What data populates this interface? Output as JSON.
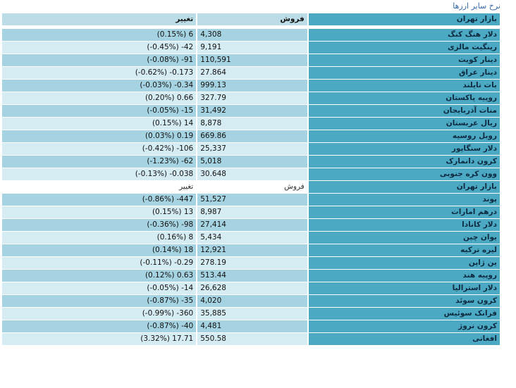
{
  "title": "نرخ سایر ارزها",
  "headers": {
    "market": "بازار تهران",
    "sell": "فروش",
    "change": "تغییر"
  },
  "rows": [
    {
      "name": "دلار هنگ کنگ",
      "sell": "4,308",
      "change": "6",
      "pct": "(0.15%)"
    },
    {
      "name": "رینگیت مالزی",
      "sell": "9,191",
      "change": "-42",
      "pct": "(-0.45%)"
    },
    {
      "name": "دینار کویت",
      "sell": "110,591",
      "change": "-91",
      "pct": "(-0.08%)"
    },
    {
      "name": "دینار عراق",
      "sell": "27.864",
      "change": "-0.173",
      "pct": "(-0.62%)"
    },
    {
      "name": "بات تایلند",
      "sell": "999.13",
      "change": "-0.34",
      "pct": "(-0.03%)"
    },
    {
      "name": "روپیه پاکستان",
      "sell": "327.79",
      "change": "0.66",
      "pct": "(0.20%)"
    },
    {
      "name": "منات آذربایجان",
      "sell": "31,492",
      "change": "-15",
      "pct": "(-0.05%)"
    },
    {
      "name": "ریال عربستان",
      "sell": "8,878",
      "change": "14",
      "pct": "(0.15%)"
    },
    {
      "name": "روبل روسیه",
      "sell": "669.86",
      "change": "0.19",
      "pct": "(0.03%)"
    },
    {
      "name": "دلار سنگاپور",
      "sell": "25,337",
      "change": "-106",
      "pct": "(-0.42%)"
    },
    {
      "name": "کرون دانمارک",
      "sell": "5,018",
      "change": "-62",
      "pct": "(-1.23%)"
    },
    {
      "name": "وون کره جنوبی",
      "sell": "30.648",
      "change": "-0.038",
      "pct": "(-0.13%)"
    }
  ],
  "headers2": {
    "market": "بازار تهران",
    "sell": "فروش",
    "change": "تغییر"
  },
  "rows2": [
    {
      "name": "پوند",
      "sell": "51,527",
      "change": "-447",
      "pct": "(-0.86%)"
    },
    {
      "name": "درهم امارات",
      "sell": "8,987",
      "change": "13",
      "pct": "(0.15%)"
    },
    {
      "name": "دلار کانادا",
      "sell": "27,414",
      "change": "-98",
      "pct": "(-0.36%)"
    },
    {
      "name": "یوان چین",
      "sell": "5,434",
      "change": "8",
      "pct": "(0.16%)"
    },
    {
      "name": "لیره ترکیه",
      "sell": "12,921",
      "change": "18",
      "pct": "(0.14%)"
    },
    {
      "name": "ین ژاپن",
      "sell": "278.19",
      "change": "-0.29",
      "pct": "(-0.11%)"
    },
    {
      "name": "روپیه هند",
      "sell": "513.44",
      "change": "0.63",
      "pct": "(0.12%)"
    },
    {
      "name": "دلار استرالیا",
      "sell": "26,628",
      "change": "-14",
      "pct": "(-0.05%)"
    },
    {
      "name": "کرون سوئد",
      "sell": "4,020",
      "change": "-35",
      "pct": "(-0.87%)"
    },
    {
      "name": "فرانک سوئیس",
      "sell": "35,885",
      "change": "-360",
      "pct": "(-0.99%)"
    },
    {
      "name": "کرون نروژ",
      "sell": "4,481",
      "change": "-40",
      "pct": "(-0.87%)"
    },
    {
      "name": "افغانی",
      "sell": "550.58",
      "change": "17.71",
      "pct": "(3.32%)"
    }
  ]
}
